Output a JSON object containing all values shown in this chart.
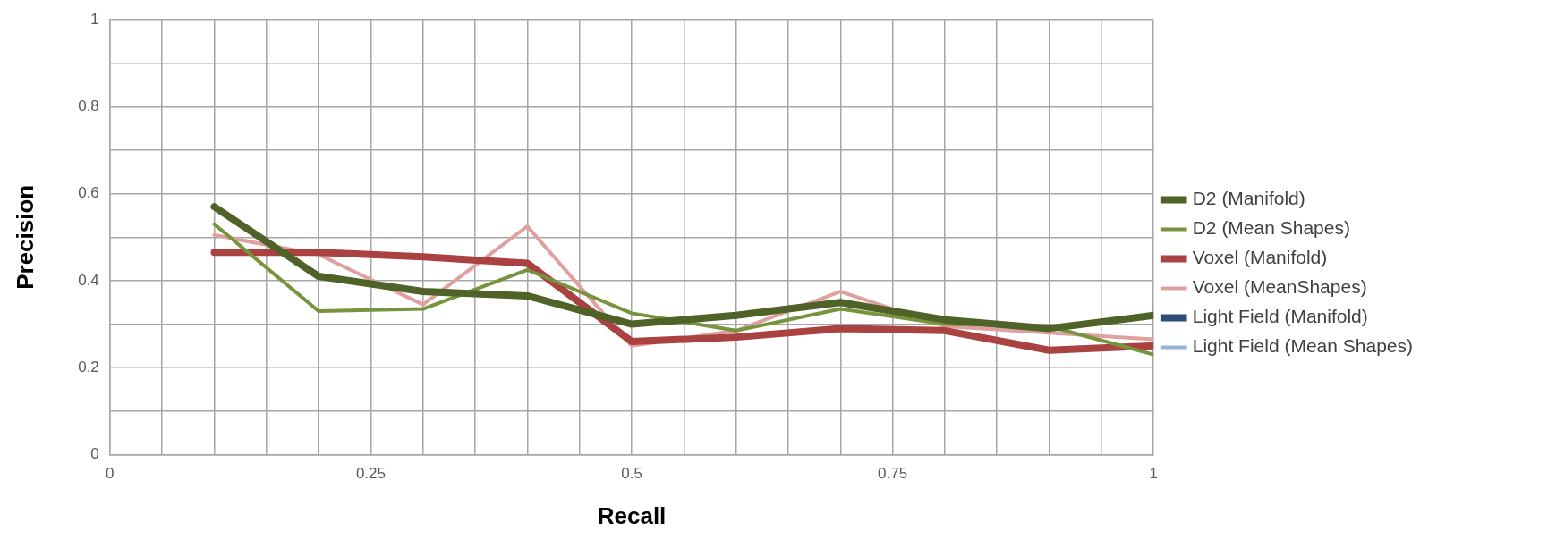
{
  "chart_data": {
    "type": "line",
    "xlabel": "Recall",
    "ylabel": "Precision",
    "x": [
      0.1,
      0.2,
      0.3,
      0.4,
      0.5,
      0.6,
      0.7,
      0.8,
      0.9,
      1
    ],
    "series": [
      {
        "name": "D2 (Manifold)",
        "color": "#4f6228",
        "values": [
          0.57,
          0.41,
          0.375,
          0.365,
          0.3,
          0.32,
          0.35,
          0.31,
          0.29,
          0.32
        ]
      },
      {
        "name": "D2 (Mean Shapes)",
        "color": "#77933c",
        "values": [
          0.53,
          0.33,
          0.335,
          0.425,
          0.325,
          0.285,
          0.335,
          0.3,
          0.295,
          0.23
        ]
      },
      {
        "name": "Voxel (Manifold)",
        "color": "#a94240",
        "values": [
          0.465,
          0.465,
          0.455,
          0.44,
          0.26,
          0.27,
          0.29,
          0.285,
          0.24,
          0.25
        ]
      },
      {
        "name": "Voxel (MeanShapes)",
        "color": "#e0a0a0",
        "values": [
          0.505,
          0.46,
          0.345,
          0.525,
          0.25,
          0.285,
          0.375,
          0.295,
          0.28,
          0.265
        ]
      },
      {
        "name": "Light Field (Manifold)",
        "color": "#2c4d75",
        "values": [
          null,
          null,
          null,
          null,
          null,
          null,
          null,
          null,
          null,
          null
        ]
      },
      {
        "name": "Light Field (Mean Shapes)",
        "color": "#95b3d7",
        "values": [
          null,
          null,
          null,
          null,
          null,
          null,
          null,
          null,
          null,
          null
        ]
      }
    ],
    "xlim": [
      0,
      1
    ],
    "xticks": [
      0,
      {
        "value": 0.05,
        "label": null
      },
      {
        "value": 0.1,
        "label": null
      },
      {
        "value": 0.15,
        "label": null
      },
      {
        "value": 0.2,
        "label": null
      },
      0.25,
      {
        "value": 0.3,
        "label": null
      },
      {
        "value": 0.35,
        "label": null
      },
      {
        "value": 0.4,
        "label": null
      },
      {
        "value": 0.45,
        "label": null
      },
      0.5,
      {
        "value": 0.55,
        "label": null
      },
      {
        "value": 0.6,
        "label": null
      },
      {
        "value": 0.65,
        "label": null
      },
      {
        "value": 0.7,
        "label": null
      },
      0.75,
      {
        "value": 0.8,
        "label": null
      },
      {
        "value": 0.85,
        "label": null
      },
      {
        "value": 0.9,
        "label": null
      },
      {
        "value": 0.95,
        "label": null
      },
      1
    ],
    "ylim": [
      0,
      1
    ],
    "yticks": [
      0,
      {
        "value": 0.1,
        "label": null
      },
      0.2,
      {
        "value": 0.3,
        "label": null
      },
      0.4,
      {
        "value": 0.5,
        "label": null
      },
      0.6,
      {
        "value": 0.7,
        "label": null
      },
      0.8,
      {
        "value": 0.9,
        "label": null
      },
      1
    ],
    "grid": true,
    "legend": "right",
    "marker": "none",
    "line_style": "solid"
  }
}
